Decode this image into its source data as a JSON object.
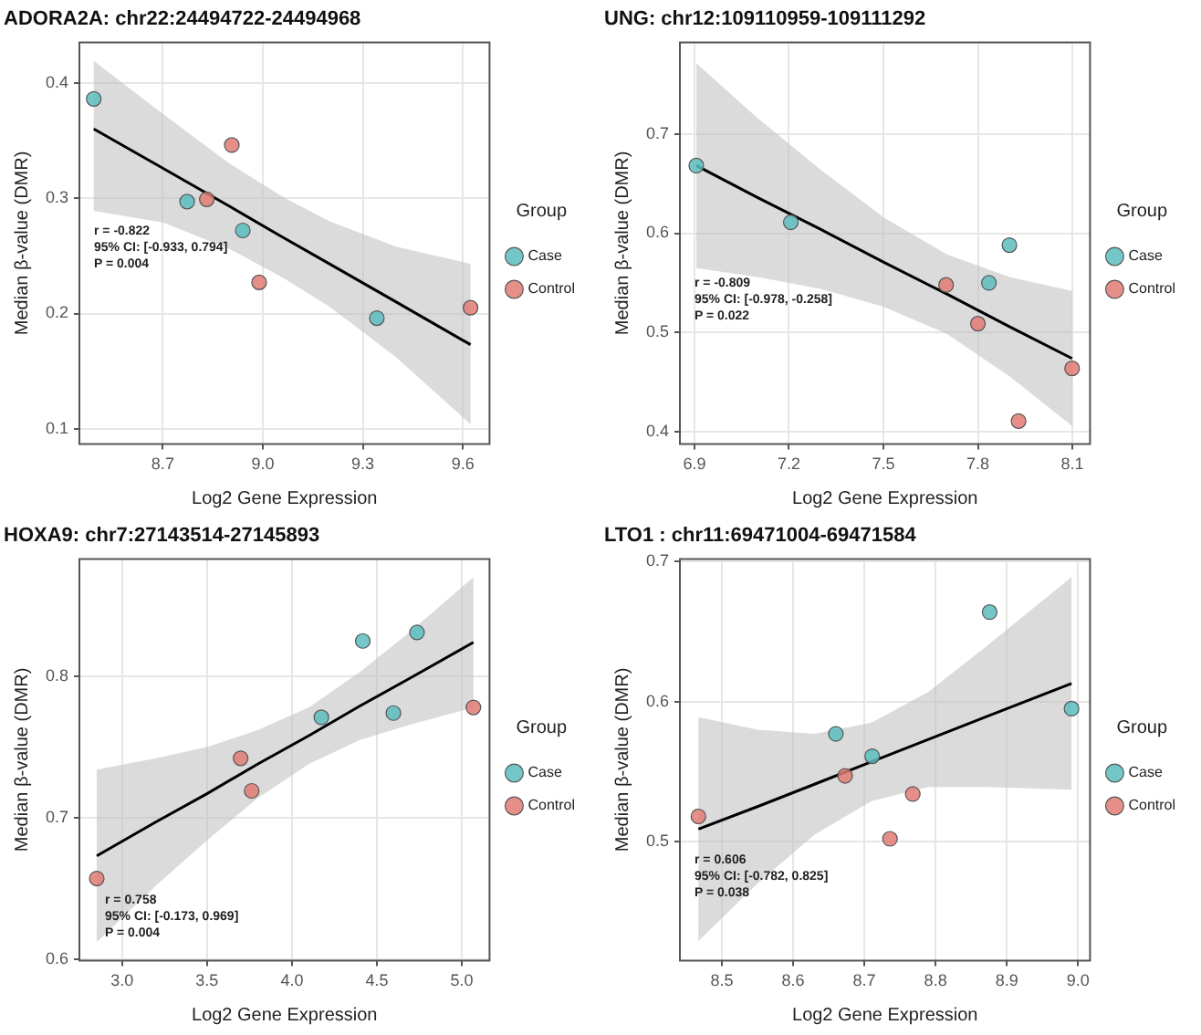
{
  "chart_data": [
    {
      "type": "scatter",
      "title": "ADORA2A: chr22:24494722-24494968",
      "xlabel": "Log2 Gene Expression",
      "ylabel": "Median β-value (DMR)",
      "legend_title": "Group",
      "legend": "right",
      "grid": true,
      "marker": "circle",
      "xlim": [
        8.45,
        9.68
      ],
      "xticks": [
        8.7,
        {
          "value": 9,
          "label": "9.0"
        },
        9.3,
        9.6
      ],
      "ylim": [
        0.087,
        0.435
      ],
      "yticks": [
        0.1,
        0.2,
        0.3,
        0.4
      ],
      "annotations": [
        "r = -0.822",
        "95% CI: [-0.933, 0.794]",
        "P = 0.004"
      ],
      "series": [
        {
          "name": "Case",
          "color": "#5bbdbf",
          "x": [
            8.493,
            8.773,
            8.94,
            9.342
          ],
          "values": [
            0.386,
            0.297,
            0.272,
            0.196
          ]
        },
        {
          "name": "Control",
          "color": "#e07b73",
          "x": [
            8.907,
            8.832,
            8.989,
            9.623
          ],
          "values": [
            0.346,
            0.299,
            0.227,
            0.205
          ]
        },
        {
          "type": "line",
          "marker": "none",
          "color": "#000000",
          "x": [
            8.493,
            8.7,
            8.9,
            9.06,
            9.2,
            9.4,
            9.623
          ],
          "values": [
            0.36,
            0.326,
            0.293,
            0.266,
            0.243,
            0.21,
            0.173
          ],
          "lower": [
            0.289,
            0.279,
            0.256,
            0.231,
            0.206,
            0.162,
            0.104
          ],
          "upper": [
            0.419,
            0.373,
            0.33,
            0.301,
            0.28,
            0.258,
            0.243
          ]
        }
      ]
    },
    {
      "type": "scatter",
      "title": "UNG: chr12:109110959-109111292",
      "xlabel": "Log2 Gene Expression",
      "ylabel": "Median β-value (DMR)",
      "legend_title": "Group",
      "legend": "right",
      "grid": true,
      "marker": "circle",
      "xlim": [
        6.854,
        8.156
      ],
      "xticks": [
        6.9,
        7.2,
        7.5,
        7.8,
        8.1
      ],
      "ylim": [
        0.388,
        0.792
      ],
      "yticks": [
        0.4,
        0.5,
        0.6,
        0.7
      ],
      "annotations": [
        "r = -0.809",
        "95% CI: [-0.978, -0.258]",
        "P = 0.022"
      ],
      "series": [
        {
          "name": "Case",
          "color": "#5bbdbf",
          "x": [
            6.906,
            7.206,
            7.9,
            7.835
          ],
          "values": [
            0.668,
            0.611,
            0.588,
            0.55
          ]
        },
        {
          "name": "Control",
          "color": "#e07b73",
          "x": [
            7.699,
            7.8,
            8.099,
            7.929
          ],
          "values": [
            0.548,
            0.509,
            0.464,
            0.411
          ]
        },
        {
          "type": "line",
          "marker": "none",
          "color": "#000000",
          "x": [
            6.906,
            7.1,
            7.3,
            7.5,
            7.7,
            7.9,
            8.099
          ],
          "values": [
            0.668,
            0.636,
            0.604,
            0.571,
            0.539,
            0.506,
            0.474
          ],
          "lower": [
            0.565,
            0.556,
            0.544,
            0.526,
            0.499,
            0.456,
            0.406
          ],
          "upper": [
            0.771,
            0.716,
            0.664,
            0.616,
            0.579,
            0.556,
            0.542
          ]
        }
      ]
    },
    {
      "type": "scatter",
      "title": "HOXA9: chr7:27143514-27145893",
      "xlabel": "Log2 Gene Expression",
      "ylabel": "Median β-value (DMR)",
      "legend_title": "Group",
      "legend": "right",
      "grid": true,
      "marker": "circle",
      "xlim": [
        2.749,
        5.163
      ],
      "xticks": [
        {
          "value": 3,
          "label": "3.0"
        },
        3.5,
        {
          "value": 4,
          "label": "4.0"
        },
        4.5,
        {
          "value": 5,
          "label": "5.0"
        }
      ],
      "ylim": [
        0.599,
        0.883
      ],
      "yticks": [
        0.6,
        0.7,
        0.8
      ],
      "annotations": [
        "r = 0.758",
        "95% CI: [-0.173, 0.969]",
        "P = 0.004"
      ],
      "series": [
        {
          "name": "Case",
          "color": "#5bbdbf",
          "x": [
            4.417,
            4.736,
            4.173,
            4.597
          ],
          "values": [
            0.825,
            0.831,
            0.771,
            0.774
          ]
        },
        {
          "name": "Control",
          "color": "#e07b73",
          "x": [
            3.698,
            3.763,
            2.851,
            5.068
          ],
          "values": [
            0.742,
            0.719,
            0.657,
            0.778
          ]
        },
        {
          "type": "line",
          "marker": "none",
          "color": "#000000",
          "x": [
            2.851,
            3.2,
            3.5,
            3.8,
            4.1,
            4.4,
            4.7,
            5.068
          ],
          "values": [
            0.673,
            0.697,
            0.717,
            0.738,
            0.758,
            0.779,
            0.799,
            0.824
          ],
          "lower": [
            0.612,
            0.652,
            0.684,
            0.714,
            0.738,
            0.755,
            0.766,
            0.778
          ],
          "upper": [
            0.734,
            0.742,
            0.75,
            0.762,
            0.778,
            0.803,
            0.832,
            0.87
          ]
        }
      ]
    },
    {
      "type": "scatter",
      "title": "LTO1 : chr11:69471004-69471584",
      "xlabel": "Log2 Gene Expression",
      "ylabel": "Median β-value (DMR)",
      "legend_title": "Group",
      "legend": "right",
      "grid": true,
      "marker": "circle",
      "xlim": [
        8.441,
        9.017
      ],
      "xticks": [
        8.5,
        8.6,
        8.7,
        8.8,
        8.9,
        {
          "value": 9,
          "label": "9.0"
        }
      ],
      "ylim": [
        0.415,
        0.702
      ],
      "yticks": [
        0.5,
        0.6,
        0.7
      ],
      "annotations": [
        "r = 0.606",
        "95% CI: [-0.782, 0.825]",
        "P = 0.038"
      ],
      "series": [
        {
          "name": "Case",
          "color": "#5bbdbf",
          "x": [
            8.876,
            8.991,
            8.66,
            8.711
          ],
          "values": [
            0.664,
            0.595,
            0.577,
            0.561
          ]
        },
        {
          "name": "Control",
          "color": "#e07b73",
          "x": [
            8.673,
            8.768,
            8.736,
            8.467
          ],
          "values": [
            0.547,
            0.534,
            0.502,
            0.518
          ]
        },
        {
          "type": "line",
          "marker": "none",
          "color": "#000000",
          "x": [
            8.467,
            8.55,
            8.63,
            8.71,
            8.79,
            8.87,
            8.991
          ],
          "values": [
            0.509,
            0.525,
            0.541,
            0.557,
            0.573,
            0.589,
            0.613
          ],
          "lower": [
            0.429,
            0.47,
            0.505,
            0.529,
            0.539,
            0.539,
            0.537
          ],
          "upper": [
            0.589,
            0.58,
            0.577,
            0.585,
            0.607,
            0.639,
            0.689
          ]
        }
      ]
    }
  ]
}
